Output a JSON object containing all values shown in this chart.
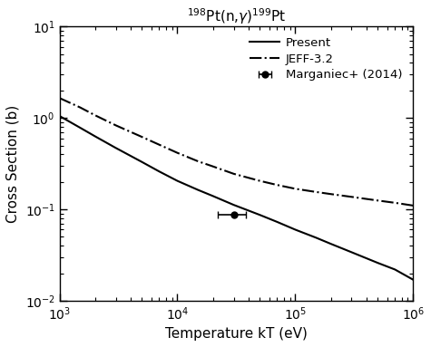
{
  "title": "$^{198}$Pt(n,$\\gamma$)$^{199}$Pt",
  "xlabel": "Temperature kT (eV)",
  "ylabel": "Cross Section (b)",
  "xlim": [
    1000.0,
    1000000.0
  ],
  "ylim": [
    0.01,
    10
  ],
  "legend_entries": [
    "Present",
    "JEFF-3.2",
    "Marganiec+ (2014)"
  ],
  "present_x": [
    1000,
    1500,
    2000,
    3000,
    5000,
    7000,
    10000,
    15000,
    20000,
    30000,
    50000,
    70000,
    100000,
    150000,
    200000,
    300000,
    500000,
    700000,
    1000000
  ],
  "present_y": [
    1.05,
    0.78,
    0.63,
    0.47,
    0.33,
    0.26,
    0.205,
    0.163,
    0.14,
    0.112,
    0.087,
    0.073,
    0.06,
    0.049,
    0.042,
    0.034,
    0.026,
    0.022,
    0.017
  ],
  "jeff_x": [
    1000,
    1500,
    2000,
    3000,
    5000,
    7000,
    10000,
    15000,
    20000,
    30000,
    50000,
    70000,
    100000,
    150000,
    200000,
    300000,
    500000,
    700000,
    1000000
  ],
  "jeff_y": [
    1.65,
    1.3,
    1.07,
    0.83,
    0.62,
    0.51,
    0.415,
    0.335,
    0.295,
    0.245,
    0.205,
    0.185,
    0.168,
    0.155,
    0.147,
    0.137,
    0.125,
    0.118,
    0.11
  ],
  "data_point_x": 30000,
  "data_point_y": 0.087,
  "data_point_xerr_lo": 8000,
  "data_point_xerr_hi": 8000,
  "data_point_yerr": 0.0,
  "line_color": "#000000",
  "background_color": "#ffffff",
  "figsize": [
    4.75,
    3.83
  ],
  "dpi": 100
}
